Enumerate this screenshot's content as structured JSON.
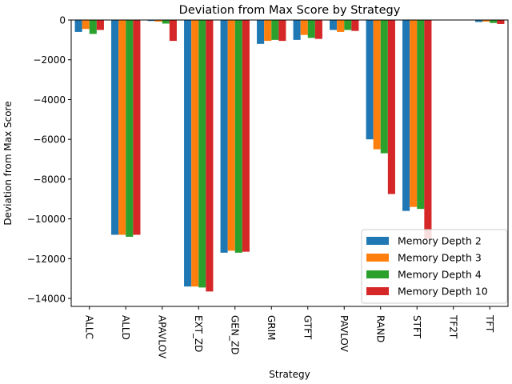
{
  "chart_data": {
    "type": "bar",
    "title": "Deviation from Max Score by Strategy",
    "xlabel": "Strategy",
    "ylabel": "Deviation from Max Score",
    "ylim": [
      -14400,
      0
    ],
    "yticks": [
      0,
      -2000,
      -4000,
      -6000,
      -8000,
      -10000,
      -12000,
      -14000
    ],
    "ytick_labels": [
      "0",
      "−2000",
      "−4000",
      "−6000",
      "−8000",
      "−10000",
      "−12000",
      "−14000"
    ],
    "categories": [
      "ALLC",
      "ALLD",
      "APAVLOV",
      "EXT_ZD",
      "GEN_ZD",
      "GRIM",
      "GTFT",
      "PAVLOV",
      "RAND",
      "STFT",
      "TF2T",
      "TFT"
    ],
    "series": [
      {
        "name": "Memory Depth 2",
        "color": "#1f77b4",
        "values": [
          -600,
          -10800,
          -50,
          -13400,
          -11700,
          -1200,
          -1000,
          -500,
          -6000,
          -9600,
          0,
          -100
        ]
      },
      {
        "name": "Memory Depth 3",
        "color": "#ff7f0e",
        "values": [
          -450,
          -10800,
          -80,
          -13400,
          -11600,
          -1050,
          -750,
          -600,
          -6500,
          -9400,
          0,
          -80
        ]
      },
      {
        "name": "Memory Depth 4",
        "color": "#2ca02c",
        "values": [
          -700,
          -10900,
          -180,
          -13450,
          -11700,
          -1000,
          -900,
          -500,
          -6700,
          -9500,
          0,
          -150
        ]
      },
      {
        "name": "Memory Depth 10",
        "color": "#d62728",
        "values": [
          -500,
          -10800,
          -1050,
          -13650,
          -11650,
          -1050,
          -950,
          -550,
          -8750,
          -11000,
          0,
          -200
        ]
      }
    ],
    "grid": false,
    "legend_position": "lower-right"
  }
}
